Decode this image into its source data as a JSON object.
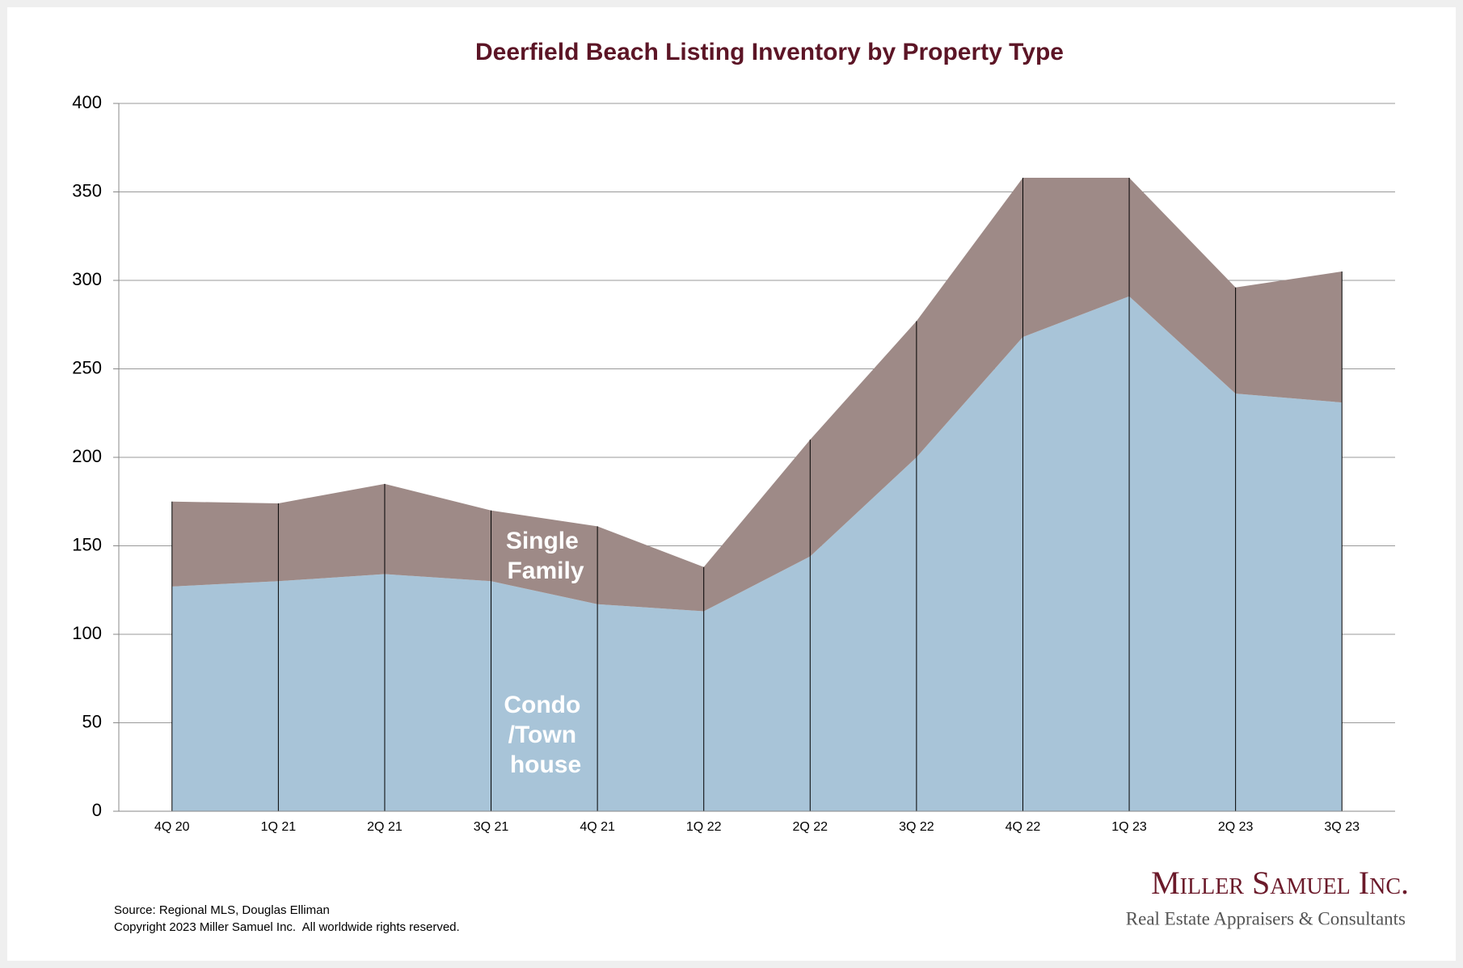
{
  "chart_data": {
    "type": "stacked_area",
    "title": "Deerfield Beach Listing Inventory by Property Type",
    "categories": [
      "4Q 20",
      "1Q 21",
      "2Q 21",
      "3Q 21",
      "4Q 21",
      "1Q 22",
      "2Q 22",
      "3Q 22",
      "4Q 22",
      "1Q 23",
      "2Q 23",
      "3Q 23"
    ],
    "series": [
      {
        "name": "Condo /Town house",
        "color": "#a8c4d8",
        "values": [
          127,
          130,
          134,
          130,
          117,
          113,
          144,
          200,
          268,
          291,
          236,
          231
        ]
      },
      {
        "name": "Single Family",
        "color": "#9e8a87",
        "values": [
          48,
          44,
          51,
          40,
          44,
          25,
          66,
          77,
          90,
          67,
          60,
          74
        ]
      }
    ],
    "ylim": [
      0,
      400
    ],
    "yticks": [
      0,
      50,
      100,
      150,
      200,
      250,
      300,
      350,
      400
    ],
    "grid": true
  },
  "footer": {
    "source": "Source: Regional MLS, Douglas Elliman",
    "copyright": "Copyright 2023 Miller Samuel Inc.  All worldwide rights reserved.",
    "logo": "Miller Samuel Inc.",
    "tagline": "Real Estate Appraisers & Consultants"
  }
}
